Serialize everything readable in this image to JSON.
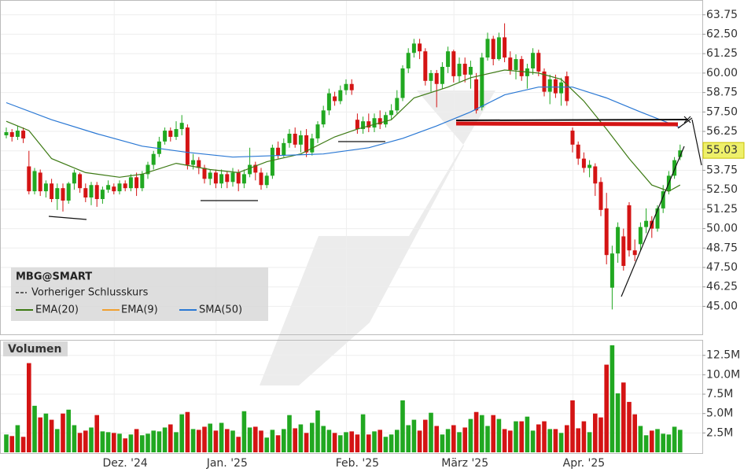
{
  "chart_data": {
    "type": "candlestick",
    "categories": [
      null,
      null,
      null,
      null,
      null,
      null,
      null,
      null,
      null,
      null,
      null,
      null,
      null,
      null,
      null,
      null,
      null,
      null,
      null,
      null,
      null,
      "Dez. '24",
      null,
      null,
      null,
      null,
      null,
      null,
      null,
      null,
      null,
      null,
      null,
      null,
      null,
      null,
      null,
      null,
      null,
      "Jan. '25",
      null,
      null,
      null,
      null,
      null,
      null,
      null,
      null,
      null,
      null,
      null,
      null,
      null,
      null,
      null,
      null,
      null,
      null,
      null,
      null,
      null,
      null,
      "Feb. '25",
      null,
      null,
      null,
      null,
      null,
      null,
      null,
      null,
      null,
      null,
      null,
      null,
      null,
      null,
      null,
      null,
      null,
      null,
      "März '25",
      null,
      null,
      null,
      null,
      null,
      null,
      null,
      null,
      null,
      null,
      null,
      null,
      null,
      null,
      null,
      null,
      null,
      null,
      null,
      null,
      "Apr. '25",
      null,
      null,
      null,
      null,
      null,
      null,
      null,
      null,
      null,
      null,
      null,
      null,
      null,
      null,
      null,
      null,
      null
    ],
    "open": [
      56.0,
      56.2,
      55.9,
      56.3,
      54.0,
      52.4,
      53.6,
      52.4,
      52.9,
      51.9,
      52.6,
      51.8,
      52.9,
      53.5,
      52.6,
      52.0,
      52.8,
      51.9,
      52.5,
      52.7,
      52.4,
      52.9,
      52.6,
      53.3,
      52.6,
      53.5,
      54.1,
      54.8,
      55.6,
      56.3,
      55.9,
      56.4,
      56.5,
      54.1,
      54.4,
      53.9,
      53.2,
      53.6,
      52.9,
      53.5,
      53.0,
      53.6,
      52.9,
      53.5,
      54.1,
      53.6,
      52.8,
      53.4,
      55.2,
      54.7,
      55.5,
      56.1,
      55.4,
      56.0,
      54.9,
      55.8,
      56.7,
      57.6,
      58.5,
      58.2,
      58.9,
      59.3,
      57.0,
      56.4,
      56.9,
      56.5,
      57.1,
      56.7,
      57.3,
      57.6,
      58.4,
      60.3,
      61.3,
      61.9,
      61.4,
      59.5,
      60.0,
      59.3,
      60.4,
      61.4,
      59.8,
      60.6,
      59.9,
      59.6,
      57.8,
      61.0,
      62.2,
      60.9,
      62.3,
      61.0,
      60.2,
      60.9,
      59.8,
      60.3,
      61.3,
      60.1,
      58.8,
      59.6,
      58.7,
      59.8,
      56.3,
      55.4,
      54.5,
      53.9,
      54.0,
      53.0,
      51.3,
      46.2,
      48.4,
      49.5,
      51.5,
      48.6,
      49.0,
      50.1,
      50.5,
      50.0,
      51.3,
      52.4,
      53.4,
      54.6
    ],
    "high": [
      56.5,
      56.4,
      56.6,
      56.5,
      55.0,
      53.9,
      53.8,
      53.1,
      53.2,
      52.9,
      52.9,
      53.0,
      53.8,
      53.6,
      52.9,
      53.0,
      53.0,
      52.7,
      53.1,
      52.9,
      53.1,
      53.1,
      53.5,
      53.6,
      53.7,
      54.3,
      55.0,
      55.9,
      56.5,
      56.5,
      56.9,
      57.3,
      56.7,
      54.8,
      54.6,
      54.1,
      53.8,
      53.8,
      53.8,
      53.7,
      53.9,
      53.8,
      53.8,
      55.2,
      54.3,
      53.9,
      53.6,
      55.4,
      55.6,
      55.8,
      56.4,
      56.5,
      56.3,
      56.4,
      56.1,
      56.9,
      57.9,
      59.0,
      58.8,
      59.2,
      59.6,
      59.6,
      57.4,
      57.2,
      57.4,
      57.4,
      57.6,
      57.5,
      58.0,
      58.9,
      60.5,
      61.6,
      62.2,
      62.2,
      61.6,
      60.2,
      60.2,
      60.7,
      61.7,
      61.5,
      61.0,
      61.0,
      60.8,
      60.0,
      61.3,
      62.6,
      62.4,
      62.6,
      63.2,
      61.4,
      61.2,
      61.1,
      60.6,
      61.6,
      61.5,
      60.3,
      59.9,
      59.9,
      59.7,
      60.1,
      56.5,
      55.6,
      54.9,
      54.4,
      54.2,
      53.3,
      52.3,
      48.9,
      50.4,
      50.0,
      51.7,
      49.3,
      50.4,
      51.3,
      50.8,
      51.5,
      52.8,
      53.7,
      54.6,
      55.4
    ],
    "low": [
      55.8,
      55.6,
      55.7,
      55.5,
      52.2,
      52.2,
      52.1,
      52.0,
      51.7,
      51.2,
      51.1,
      51.6,
      52.5,
      52.3,
      51.7,
      51.5,
      51.4,
      51.6,
      52.3,
      52.2,
      52.2,
      52.4,
      52.4,
      52.1,
      52.4,
      53.2,
      53.8,
      54.6,
      55.4,
      55.6,
      55.7,
      56.0,
      53.8,
      53.8,
      53.5,
      52.9,
      52.8,
      52.6,
      52.6,
      52.6,
      52.7,
      52.4,
      52.6,
      53.3,
      53.1,
      52.5,
      52.6,
      53.2,
      54.5,
      54.6,
      55.2,
      55.2,
      54.9,
      54.6,
      54.7,
      55.5,
      56.5,
      57.3,
      57.9,
      58.0,
      58.6,
      58.6,
      56.1,
      56.1,
      56.2,
      56.2,
      56.4,
      56.5,
      57.0,
      57.4,
      58.2,
      60.0,
      61.0,
      60.9,
      59.2,
      58.8,
      57.8,
      59.0,
      60.0,
      59.4,
      59.4,
      59.4,
      59.0,
      57.4,
      57.6,
      60.8,
      60.5,
      60.8,
      60.7,
      59.9,
      59.6,
      59.5,
      59.0,
      59.9,
      59.8,
      58.5,
      58.0,
      58.4,
      57.9,
      57.9,
      54.9,
      54.1,
      53.6,
      53.3,
      52.1,
      50.8,
      47.7,
      44.8,
      47.8,
      47.3,
      48.2,
      47.9,
      48.6,
      49.7,
      49.4,
      49.8,
      51.0,
      52.2,
      53.2,
      54.4
    ],
    "close": [
      56.2,
      55.9,
      56.3,
      55.8,
      52.4,
      53.7,
      52.4,
      52.9,
      51.9,
      52.6,
      51.8,
      52.9,
      53.6,
      52.6,
      52.0,
      52.8,
      51.9,
      52.5,
      52.8,
      52.4,
      52.9,
      52.6,
      53.3,
      52.6,
      53.5,
      54.1,
      54.8,
      55.6,
      56.3,
      55.9,
      56.4,
      56.8,
      54.1,
      54.4,
      53.9,
      53.2,
      53.6,
      52.9,
      53.5,
      53.0,
      53.6,
      52.9,
      53.5,
      54.1,
      53.6,
      52.8,
      53.4,
      55.2,
      54.7,
      55.5,
      56.1,
      55.4,
      56.0,
      54.9,
      55.8,
      56.7,
      57.6,
      58.7,
      58.2,
      58.9,
      59.3,
      58.9,
      56.4,
      56.9,
      56.5,
      57.1,
      56.7,
      57.3,
      57.6,
      58.4,
      60.3,
      61.3,
      61.9,
      61.4,
      59.5,
      60.0,
      59.3,
      60.4,
      61.4,
      59.8,
      60.6,
      59.9,
      60.4,
      57.6,
      61.0,
      62.2,
      60.9,
      62.3,
      61.0,
      60.2,
      60.9,
      59.8,
      60.3,
      61.3,
      60.1,
      58.8,
      59.6,
      58.7,
      59.4,
      58.2,
      55.4,
      54.5,
      53.9,
      54.1,
      52.9,
      51.2,
      48.3,
      48.4,
      50.1,
      47.6,
      48.6,
      48.3,
      50.1,
      50.5,
      50.0,
      51.3,
      52.4,
      53.4,
      54.4,
      55.03
    ],
    "up_color": "#21a821",
    "down_color": "#d41414",
    "ylim": [
      43.2,
      64.7
    ],
    "yticks": [
      {
        "value": 45,
        "label": "45.00"
      },
      {
        "value": 46.25,
        "label": "46.25"
      },
      {
        "value": 47.5,
        "label": "47.50"
      },
      {
        "value": 48.75,
        "label": "48.75"
      },
      {
        "value": 50,
        "label": "50.00"
      },
      {
        "value": 51.25,
        "label": "51.25"
      },
      {
        "value": 52.5,
        "label": "52.50"
      },
      {
        "value": 53.75,
        "label": "53.75"
      },
      {
        "value": 55,
        "label": "55.00"
      },
      {
        "value": 56.25,
        "label": "56.25"
      },
      {
        "value": 57.5,
        "label": "57.50"
      },
      {
        "value": 58.75,
        "label": "58.75"
      },
      {
        "value": 60,
        "label": "60.00"
      },
      {
        "value": 61.25,
        "label": "61.25"
      },
      {
        "value": 62.5,
        "label": "62.50"
      },
      {
        "value": 63.75,
        "label": "63.75"
      }
    ],
    "grid": true,
    "legend_title": "MBG@SMART",
    "prev_close_label": "Vorheriger Schlusskurs",
    "overlays": [
      {
        "name": "EMA(20)",
        "color": "#3d7a14",
        "x": [
          0,
          4,
          8,
          14,
          20,
          24,
          30,
          36,
          41,
          46,
          52,
          58,
          62,
          68,
          72,
          78,
          82,
          88,
          94,
          98,
          102,
          106,
          110,
          114,
          117,
          119
        ],
        "values": [
          56.9,
          56.3,
          54.5,
          53.6,
          53.3,
          53.5,
          54.2,
          53.8,
          53.6,
          54.3,
          54.8,
          55.9,
          56.4,
          57.0,
          58.4,
          59.1,
          59.7,
          60.2,
          60.0,
          59.6,
          58.2,
          56.4,
          54.5,
          52.8,
          52.4,
          52.8
        ]
      },
      {
        "name": "EMA(9)",
        "color": "#f0a030"
      },
      {
        "name": "SMA(50)",
        "color": "#2a78d4",
        "x": [
          0,
          8,
          16,
          24,
          32,
          40,
          48,
          56,
          64,
          70,
          76,
          82,
          88,
          94,
          100,
          106,
          112,
          119
        ],
        "values": [
          58.1,
          57.0,
          56.1,
          55.3,
          54.9,
          54.6,
          54.7,
          54.8,
          55.2,
          55.8,
          56.6,
          57.5,
          58.6,
          59.1,
          59.1,
          58.4,
          57.5,
          56.5
        ]
      }
    ],
    "volume": {
      "title": "Volumen",
      "values": [
        2.3,
        2.1,
        3.5,
        2.0,
        11.5,
        6.0,
        4.5,
        5.0,
        4.2,
        3.0,
        5.0,
        5.5,
        3.5,
        2.5,
        2.8,
        3.2,
        4.8,
        2.7,
        2.6,
        2.5,
        2.4,
        1.8,
        2.3,
        3.0,
        2.2,
        2.4,
        2.8,
        2.7,
        3.2,
        3.6,
        2.6,
        4.9,
        5.2,
        3.0,
        2.9,
        3.3,
        3.7,
        2.8,
        3.8,
        3.0,
        2.8,
        2.0,
        5.3,
        3.2,
        3.3,
        2.8,
        1.9,
        2.9,
        2.2,
        3.0,
        4.8,
        3.1,
        3.6,
        2.5,
        3.8,
        5.4,
        3.4,
        2.9,
        2.5,
        2.2,
        2.6,
        2.7,
        2.3,
        4.9,
        2.3,
        2.7,
        2.9,
        2.0,
        2.3,
        2.9,
        6.7,
        3.5,
        4.2,
        2.8,
        4.2,
        5.1,
        3.4,
        2.3,
        3.0,
        3.5,
        2.6,
        3.2,
        4.3,
        5.2,
        4.8,
        3.4,
        4.8,
        4.3,
        3.0,
        2.8,
        4.0,
        4.0,
        4.6,
        2.8,
        3.6,
        4.0,
        3.0,
        3.0,
        2.5,
        3.5,
        6.7,
        3.1,
        4.0,
        2.6,
        5.0,
        4.5,
        11.3,
        13.8,
        7.6,
        9.0,
        6.5,
        4.9,
        3.4,
        2.2,
        2.8,
        3.0,
        2.4,
        2.3,
        3.3,
        2.9
      ],
      "ylim": [
        0,
        14.5
      ],
      "yticks": [
        {
          "value": 2.5,
          "label": "2.5M"
        },
        {
          "value": 5,
          "label": "5.0M"
        },
        {
          "value": 7.5,
          "label": "7.5M"
        },
        {
          "value": 10,
          "label": "10.0M"
        },
        {
          "value": 12.5,
          "label": "12.5M"
        }
      ]
    }
  }
}
